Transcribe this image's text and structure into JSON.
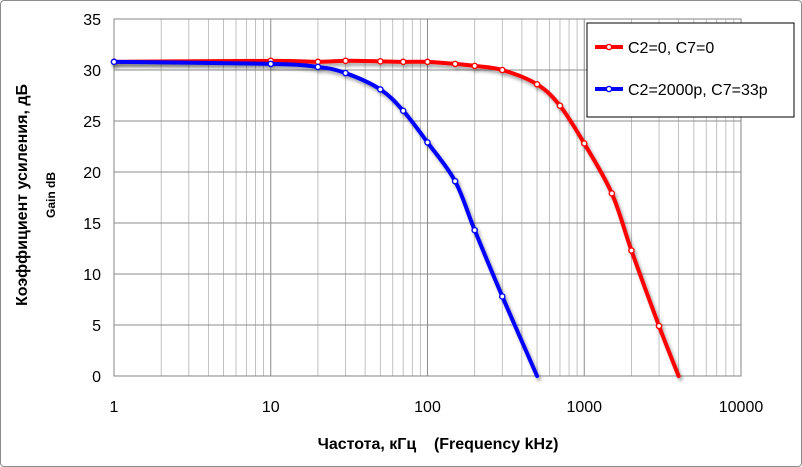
{
  "chart_data": {
    "type": "line",
    "x_scale": "log",
    "xlabel": "Частота, кГц    (Frequency kHz)",
    "ylabel": "Коэффициент усиления, дБ",
    "ylabel2": "Gain dB",
    "xlim": [
      1,
      10000
    ],
    "ylim": [
      0,
      35
    ],
    "x_ticks": [
      "1",
      "10",
      "100",
      "1000",
      "10000"
    ],
    "y_ticks": [
      "0",
      "5",
      "10",
      "15",
      "20",
      "25",
      "30",
      "35"
    ],
    "grid": true,
    "legend_position": "top-right",
    "series": [
      {
        "name": "C2=0, C7=0",
        "color": "#ff0000",
        "points": [
          [
            1,
            30.8
          ],
          [
            10,
            30.9
          ],
          [
            20,
            30.8
          ],
          [
            30,
            30.9
          ],
          [
            50,
            30.85
          ],
          [
            70,
            30.8
          ],
          [
            100,
            30.8
          ],
          [
            150,
            30.6
          ],
          [
            200,
            30.4
          ],
          [
            300,
            30.0
          ],
          [
            500,
            28.6
          ],
          [
            700,
            26.5
          ],
          [
            1000,
            22.8
          ],
          [
            1500,
            17.9
          ],
          [
            2000,
            12.3
          ],
          [
            3000,
            4.9
          ],
          [
            4000,
            0
          ]
        ]
      },
      {
        "name": "C2=2000p, C7=33p",
        "color": "#0000ff",
        "points": [
          [
            1,
            30.8
          ],
          [
            10,
            30.6
          ],
          [
            20,
            30.3
          ],
          [
            30,
            29.7
          ],
          [
            50,
            28.1
          ],
          [
            70,
            26.0
          ],
          [
            100,
            22.9
          ],
          [
            150,
            19.1
          ],
          [
            200,
            14.3
          ],
          [
            300,
            7.8
          ],
          [
            500,
            0
          ]
        ]
      }
    ]
  }
}
